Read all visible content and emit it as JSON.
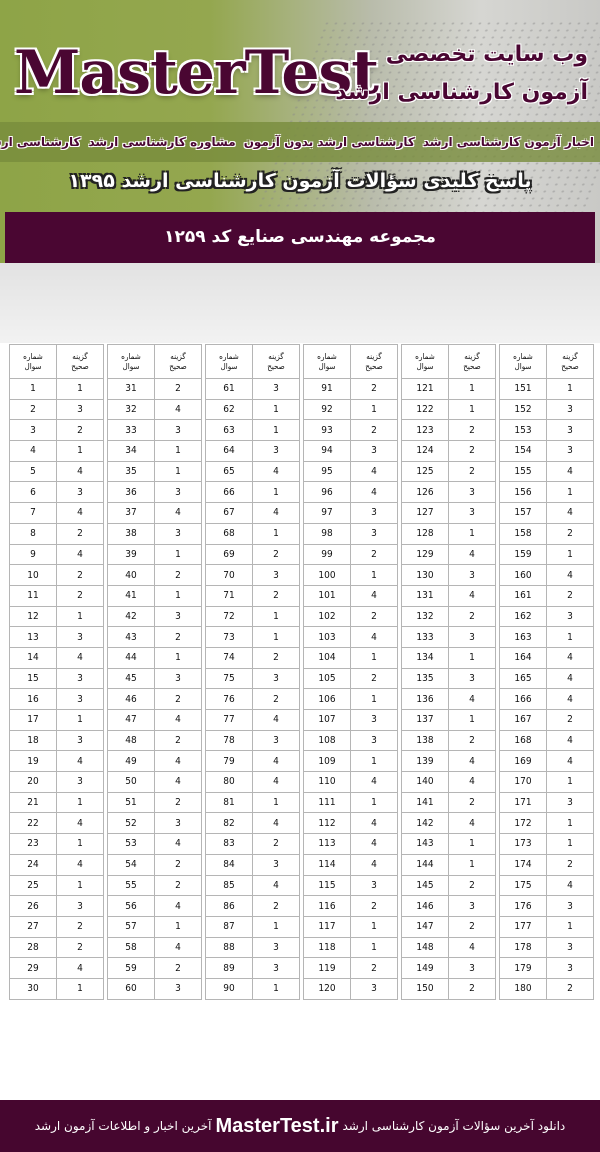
{
  "header": {
    "logo": "MasterTest",
    "tagline_line1": "وب سایت تخصصی",
    "tagline_line2": "آزمون کارشناسی ارشد",
    "links": [
      "اخبار آزمون کارشناسی ارشد",
      "کارشناسی ارشد بدون آزمون",
      "مشاوره کارشناسی ارشد",
      "کارشناسی ارشد خارج از کشور"
    ],
    "key_title": "پاسخ کلیدی سؤالات آزمون کارشناسی ارشد ۱۳۹۵",
    "subject": "مجموعه مهندسی صنایع کد ۱۲۵۹",
    "colors": {
      "brand": "#4a0632",
      "green": "#8ea447"
    }
  },
  "table": {
    "question_header": "شماره سوال",
    "answer_header": "گزینه صحیح",
    "blocks": [
      {
        "start": 1,
        "answers": [
          1,
          3,
          2,
          1,
          4,
          3,
          4,
          2,
          4,
          2,
          2,
          1,
          3,
          4,
          3,
          3,
          1,
          3,
          4,
          3,
          1,
          4,
          1,
          4,
          1,
          3,
          2,
          2,
          4,
          1
        ]
      },
      {
        "start": 31,
        "answers": [
          2,
          4,
          3,
          1,
          1,
          3,
          4,
          3,
          1,
          2,
          1,
          3,
          2,
          1,
          3,
          2,
          4,
          2,
          4,
          4,
          2,
          3,
          4,
          2,
          2,
          4,
          1,
          4,
          2,
          3
        ]
      },
      {
        "start": 61,
        "answers": [
          3,
          1,
          1,
          3,
          4,
          1,
          4,
          1,
          2,
          3,
          2,
          1,
          1,
          2,
          3,
          2,
          4,
          3,
          4,
          4,
          1,
          4,
          2,
          3,
          4,
          2,
          1,
          3,
          3,
          1
        ]
      },
      {
        "start": 91,
        "answers": [
          2,
          1,
          2,
          3,
          4,
          4,
          3,
          3,
          2,
          1,
          4,
          2,
          4,
          1,
          2,
          1,
          3,
          3,
          1,
          4,
          1,
          4,
          4,
          4,
          3,
          2,
          1,
          1,
          2,
          3
        ]
      },
      {
        "start": 121,
        "answers": [
          1,
          1,
          2,
          2,
          2,
          3,
          3,
          1,
          4,
          3,
          4,
          2,
          3,
          1,
          3,
          4,
          1,
          2,
          4,
          4,
          2,
          4,
          1,
          1,
          2,
          3,
          2,
          4,
          3,
          2
        ]
      },
      {
        "start": 151,
        "answers": [
          1,
          3,
          3,
          3,
          4,
          1,
          4,
          2,
          1,
          4,
          2,
          3,
          1,
          4,
          4,
          4,
          2,
          4,
          4,
          1,
          3,
          1,
          1,
          2,
          4,
          3,
          1,
          3,
          3,
          2
        ]
      }
    ]
  },
  "footer": {
    "text_before": "دانلود آخرین سؤالات آزمون کارشناسی ارشد",
    "site": "MasterTest.ir",
    "text_after": "آخرین اخبار و اطلاعات آزمون ارشد"
  }
}
